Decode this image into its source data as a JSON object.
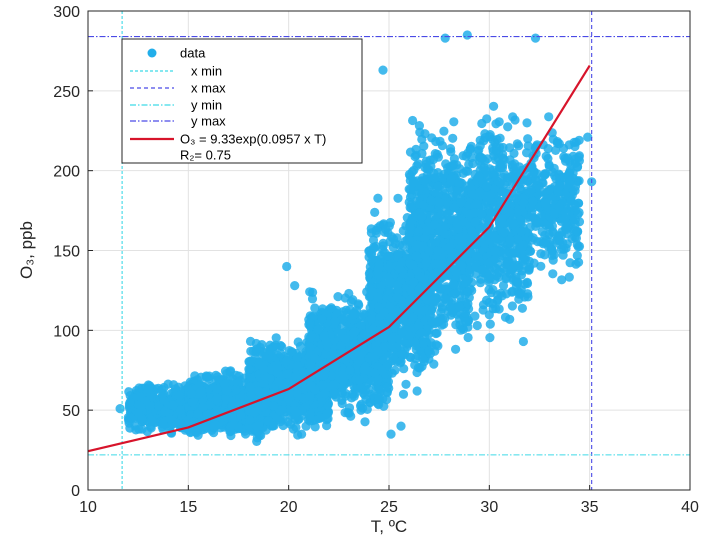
{
  "chart_data": {
    "type": "scatter",
    "xlabel": "T, ºC",
    "ylabel": "O₃, ppb",
    "xlim": [
      10,
      40
    ],
    "ylim": [
      0,
      300
    ],
    "xticks": [
      10,
      15,
      20,
      25,
      30,
      35,
      40
    ],
    "yticks": [
      0,
      50,
      100,
      150,
      200,
      250,
      300
    ],
    "grid": true,
    "legend_position": "top-left",
    "colors": {
      "data": "#22AEEA",
      "fit": "#D7142B",
      "xmin": "#3DD9E8",
      "xmax": "#4A4AE6",
      "ymin": "#3DD9E8",
      "ymax": "#4A4AE6"
    },
    "legend": {
      "data": "data",
      "xmin": "x min",
      "xmax": "x max",
      "ymin": "y min",
      "ymax": "y max",
      "fit": "O₃ = 9.33exp(0.0957 x T)",
      "r2": "R₂= 0.75"
    },
    "reference_lines": {
      "x_min": 11.7,
      "x_max": 35.1,
      "y_min": 22,
      "y_max": 284
    },
    "fit": {
      "a": 9.33,
      "b": 0.0957,
      "x": [
        10,
        15,
        20,
        25,
        30,
        35
      ]
    },
    "scatter_clusters": [
      {
        "t_min": 12.0,
        "t_max": 16.0,
        "o3_min": 33,
        "o3_max": 70,
        "count": 500
      },
      {
        "t_min": 15.0,
        "t_max": 19.0,
        "o3_min": 27,
        "o3_max": 78,
        "count": 900
      },
      {
        "t_min": 18.0,
        "t_max": 22.0,
        "o3_min": 30,
        "o3_max": 100,
        "count": 900
      },
      {
        "t_min": 21.0,
        "t_max": 25.0,
        "o3_min": 40,
        "o3_max": 130,
        "count": 900
      },
      {
        "t_min": 24.0,
        "t_max": 27.0,
        "o3_min": 55,
        "o3_max": 185,
        "count": 800
      },
      {
        "t_min": 26.0,
        "t_max": 29.0,
        "o3_min": 70,
        "o3_max": 240,
        "count": 900
      },
      {
        "t_min": 29.0,
        "t_max": 32.0,
        "o3_min": 90,
        "o3_max": 250,
        "count": 600
      },
      {
        "t_min": 32.0,
        "t_max": 34.5,
        "o3_min": 120,
        "o3_max": 240,
        "count": 300
      }
    ],
    "outliers": [
      [
        11.6,
        51
      ],
      [
        12.1,
        55
      ],
      [
        13.0,
        63
      ],
      [
        25.1,
        35
      ],
      [
        29.4,
        103
      ],
      [
        31.7,
        93
      ],
      [
        35.1,
        193
      ],
      [
        34.9,
        221
      ],
      [
        32.3,
        283
      ],
      [
        27.8,
        283
      ],
      [
        28.9,
        285
      ],
      [
        24.7,
        263
      ],
      [
        19.9,
        140
      ],
      [
        20.3,
        128
      ],
      [
        26.4,
        62
      ],
      [
        25.6,
        40
      ]
    ]
  }
}
